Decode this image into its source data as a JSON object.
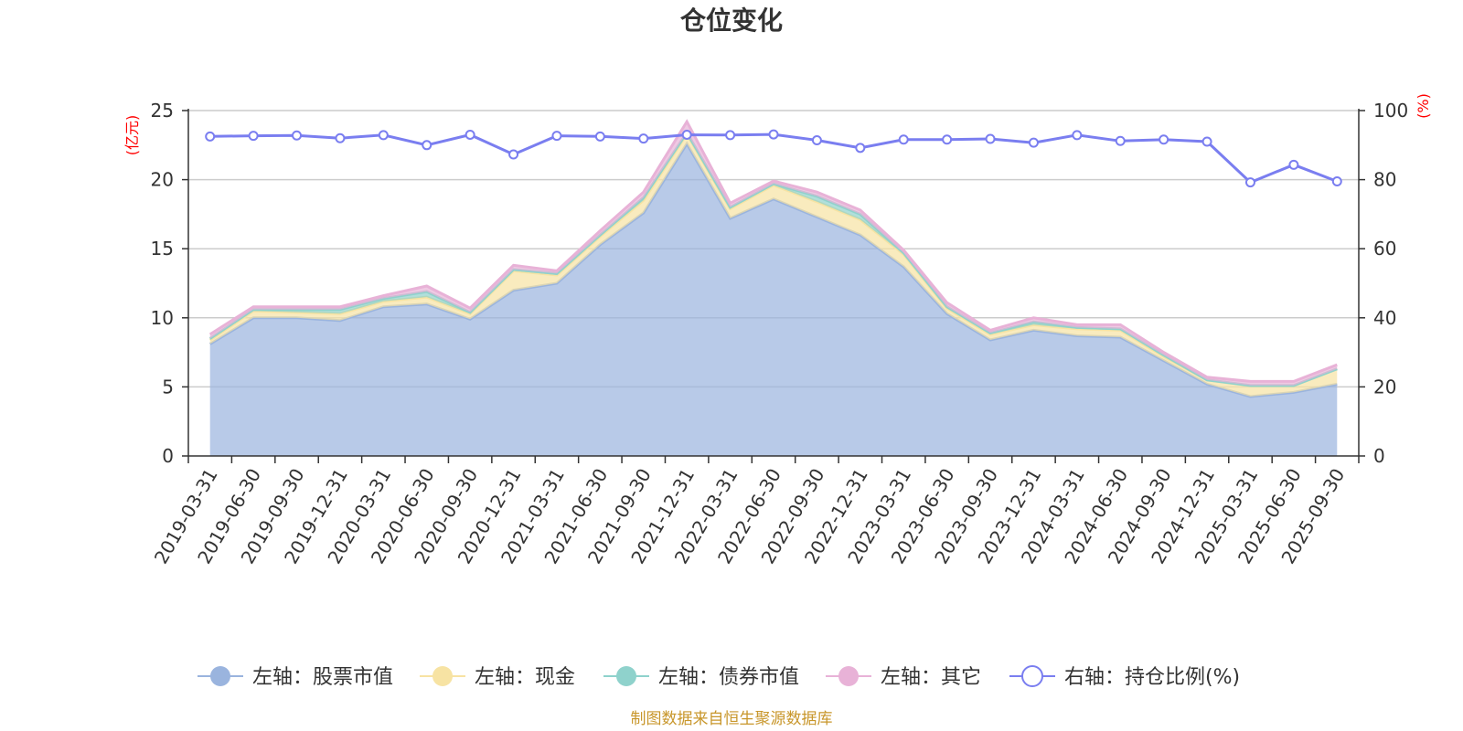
{
  "chart_data": {
    "type": "area",
    "title": "仓位变化",
    "categories": [
      "2019-03-31",
      "2019-06-30",
      "2019-09-30",
      "2019-12-31",
      "2020-03-31",
      "2020-06-30",
      "2020-09-30",
      "2020-12-31",
      "2021-03-31",
      "2021-06-30",
      "2021-09-30",
      "2021-12-31",
      "2022-03-31",
      "2022-06-30",
      "2022-09-30",
      "2022-12-31",
      "2023-03-31",
      "2023-06-30",
      "2023-09-30",
      "2023-12-31",
      "2024-03-31",
      "2024-06-30",
      "2024-09-30",
      "2024-12-31",
      "2025-03-31",
      "2025-06-30",
      "2025-09-30"
    ],
    "left_axis": {
      "unit": "(亿元)",
      "ylim": [
        0,
        25
      ],
      "ticks": [
        "0",
        "5",
        "10",
        "15",
        "20",
        "25"
      ]
    },
    "right_axis": {
      "unit": "(%)",
      "ylim": [
        0,
        100
      ],
      "ticks": [
        "0",
        "20",
        "40",
        "60",
        "80",
        "100"
      ]
    },
    "stacked": true,
    "series": [
      {
        "name": "左轴：股票市值",
        "axis": "left",
        "color": "#9ab4de",
        "values": [
          8.1,
          10.0,
          10.0,
          9.8,
          10.8,
          11.0,
          9.9,
          12.0,
          12.5,
          15.3,
          17.6,
          22.6,
          17.2,
          18.6,
          17.3,
          16.0,
          13.7,
          10.3,
          8.4,
          9.1,
          8.7,
          8.6,
          6.9,
          5.2,
          4.3,
          4.6,
          5.2
        ]
      },
      {
        "name": "左轴：现金",
        "axis": "left",
        "color": "#f7e3a3",
        "values": [
          0.3,
          0.5,
          0.4,
          0.5,
          0.4,
          0.5,
          0.4,
          1.4,
          0.6,
          0.6,
          0.9,
          0.7,
          0.7,
          1.0,
          1.1,
          1.1,
          0.9,
          0.4,
          0.4,
          0.4,
          0.5,
          0.5,
          0.3,
          0.3,
          0.8,
          0.5,
          1.1
        ]
      },
      {
        "name": "左轴：债券市值",
        "axis": "left",
        "color": "#8fd2cc",
        "values": [
          0.1,
          0.1,
          0.2,
          0.3,
          0.2,
          0.4,
          0.1,
          0.1,
          0.1,
          0.1,
          0.2,
          0.1,
          0.1,
          0.1,
          0.4,
          0.4,
          0.1,
          0.1,
          0.1,
          0.2,
          0.1,
          0.1,
          0.1,
          0.0,
          0.0,
          0.0,
          0.0
        ]
      },
      {
        "name": "左轴：其它",
        "axis": "left",
        "color": "#e8b2d7",
        "values": [
          0.3,
          0.2,
          0.2,
          0.2,
          0.2,
          0.4,
          0.3,
          0.3,
          0.2,
          0.3,
          0.4,
          0.8,
          0.3,
          0.2,
          0.3,
          0.3,
          0.2,
          0.3,
          0.2,
          0.3,
          0.2,
          0.3,
          0.2,
          0.2,
          0.3,
          0.3,
          0.3
        ]
      },
      {
        "name": "右轴：持仓比例(%)",
        "axis": "right",
        "color": "#7a7ef0",
        "values": [
          92.5,
          92.7,
          92.8,
          92.0,
          92.9,
          90.0,
          93.0,
          87.3,
          92.7,
          92.5,
          91.9,
          93.0,
          92.9,
          93.1,
          91.4,
          89.2,
          91.6,
          91.6,
          91.8,
          90.7,
          92.9,
          91.2,
          91.6,
          91.0,
          79.2,
          84.3,
          79.5
        ]
      }
    ],
    "legend_position": "bottom",
    "grid": true
  },
  "source_note": "制图数据来自恒生聚源数据库"
}
